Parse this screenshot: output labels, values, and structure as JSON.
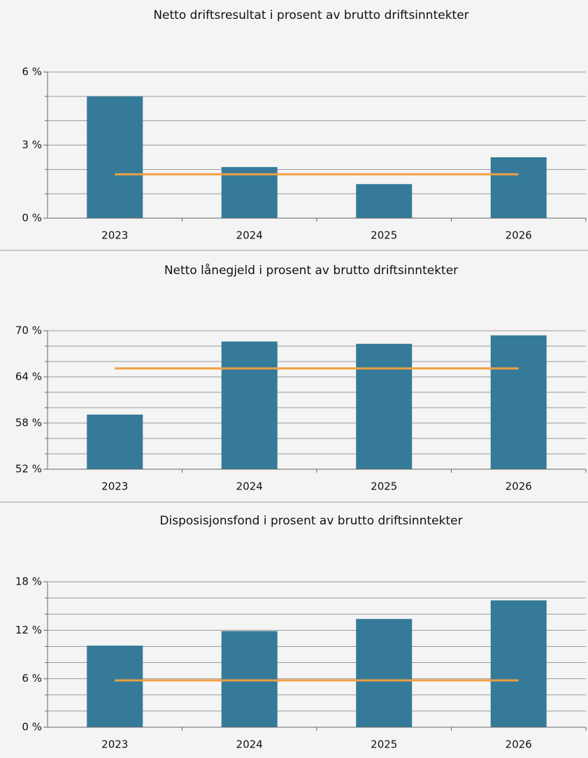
{
  "chart_data": [
    {
      "type": "bar",
      "title": "Netto driftsresultat i prosent av brutto driftsinntekter",
      "categories": [
        "2023",
        "2024",
        "2025",
        "2026"
      ],
      "values": [
        5.0,
        2.1,
        1.4,
        2.5
      ],
      "color": "#357a99",
      "reference_line": {
        "value": 1.8,
        "color": "#f0a040"
      },
      "ylim": [
        0,
        6
      ],
      "yticks": [
        {
          "value": 0,
          "label": "0 %"
        },
        {
          "value": 3,
          "label": "3 %"
        },
        {
          "value": 6,
          "label": "6 %"
        }
      ],
      "minor_yticks": [
        1,
        2,
        4,
        5
      ],
      "grid": true
    },
    {
      "type": "bar",
      "title": "Netto lånegjeld i prosent av brutto driftsinntekter",
      "categories": [
        "2023",
        "2024",
        "2025",
        "2026"
      ],
      "values": [
        59.1,
        68.6,
        68.3,
        69.4
      ],
      "color": "#357a99",
      "reference_line": {
        "value": 65.1,
        "color": "#f0a040"
      },
      "ylim": [
        52,
        70
      ],
      "yticks": [
        {
          "value": 52,
          "label": "52 %"
        },
        {
          "value": 58,
          "label": "58 %"
        },
        {
          "value": 64,
          "label": "64 %"
        },
        {
          "value": 70,
          "label": "70 %"
        }
      ],
      "minor_yticks": [
        54,
        56,
        60,
        62,
        66,
        68
      ],
      "grid": true
    },
    {
      "type": "bar",
      "title": "Disposisjonsfond i prosent av brutto driftsinntekter",
      "categories": [
        "2023",
        "2024",
        "2025",
        "2026"
      ],
      "values": [
        10.1,
        11.9,
        13.4,
        15.7
      ],
      "color": "#357a99",
      "reference_line": {
        "value": 5.8,
        "color": "#f0a040"
      },
      "ylim": [
        0,
        18
      ],
      "yticks": [
        {
          "value": 0,
          "label": "0 %"
        },
        {
          "value": 6,
          "label": "6 %"
        },
        {
          "value": 12,
          "label": "12 %"
        },
        {
          "value": 18,
          "label": "18 %"
        }
      ],
      "minor_yticks": [
        2,
        4,
        8,
        10,
        14,
        16
      ],
      "grid": true
    }
  ]
}
